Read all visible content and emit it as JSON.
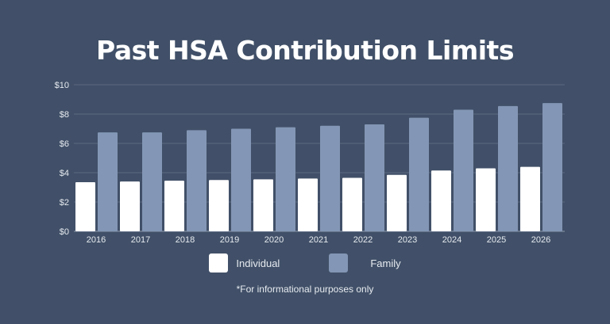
{
  "chart_data": {
    "type": "bar",
    "title": "Past HSA Contribution Limits",
    "categories": [
      "2016",
      "2017",
      "2018",
      "2019",
      "2020",
      "2021",
      "2022",
      "2023",
      "2024",
      "2025",
      "2026"
    ],
    "series": [
      {
        "name": "Individual",
        "color": "#ffffff",
        "values": [
          3.35,
          3.4,
          3.45,
          3.5,
          3.55,
          3.6,
          3.65,
          3.85,
          4.15,
          4.3,
          4.4
        ]
      },
      {
        "name": "Family",
        "color": "#8396b5",
        "values": [
          6.75,
          6.75,
          6.9,
          7.0,
          7.1,
          7.2,
          7.3,
          7.75,
          8.3,
          8.55,
          8.75
        ]
      }
    ],
    "yticks": [
      "$0",
      "$2",
      "$4",
      "$6",
      "$8",
      "$10"
    ],
    "ylim": [
      0,
      10
    ],
    "grid": true,
    "legend": "bottom",
    "footnote": "*For informational purposes only"
  }
}
